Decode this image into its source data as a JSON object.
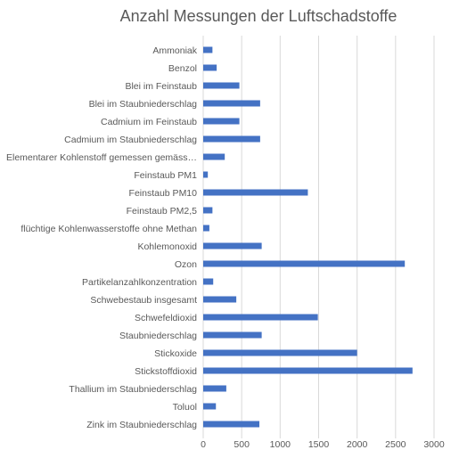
{
  "chart_data": {
    "type": "bar",
    "orientation": "horizontal",
    "title": "Anzahl Messungen der Luftschadstoffe",
    "xlabel": "",
    "ylabel": "",
    "xlim": [
      0,
      3000
    ],
    "xticks": [
      0,
      500,
      1000,
      1500,
      2000,
      2500,
      3000
    ],
    "grid": true,
    "bar_color": "#4472c4",
    "categories": [
      "Ammoniak",
      "Benzol",
      "Blei im Feinstaub",
      "Blei im Staubniederschlag",
      "Cadmium im Feinstaub",
      "Cadmium im Staubniederschlag",
      "Elementarer Kohlenstoff gemessen gemäss…",
      "Feinstaub PM1",
      "Feinstaub PM10",
      "Feinstaub PM2,5",
      "flüchtige Kohlenwasserstoffe ohne Methan",
      "Kohlemonoxid",
      "Ozon",
      "Partikelanzahlkonzentration",
      "Schwebestaub insgesamt",
      "Schwefeldioxid",
      "Staubniederschlag",
      "Stickoxide",
      "Stickstoffdioxid",
      "Thallium im Staubniederschlag",
      "Toluol",
      "Zink im Staubniederschlag"
    ],
    "values": [
      120,
      175,
      470,
      740,
      470,
      740,
      280,
      60,
      1360,
      120,
      80,
      760,
      2620,
      130,
      430,
      1490,
      760,
      2000,
      2720,
      300,
      165,
      730
    ]
  }
}
